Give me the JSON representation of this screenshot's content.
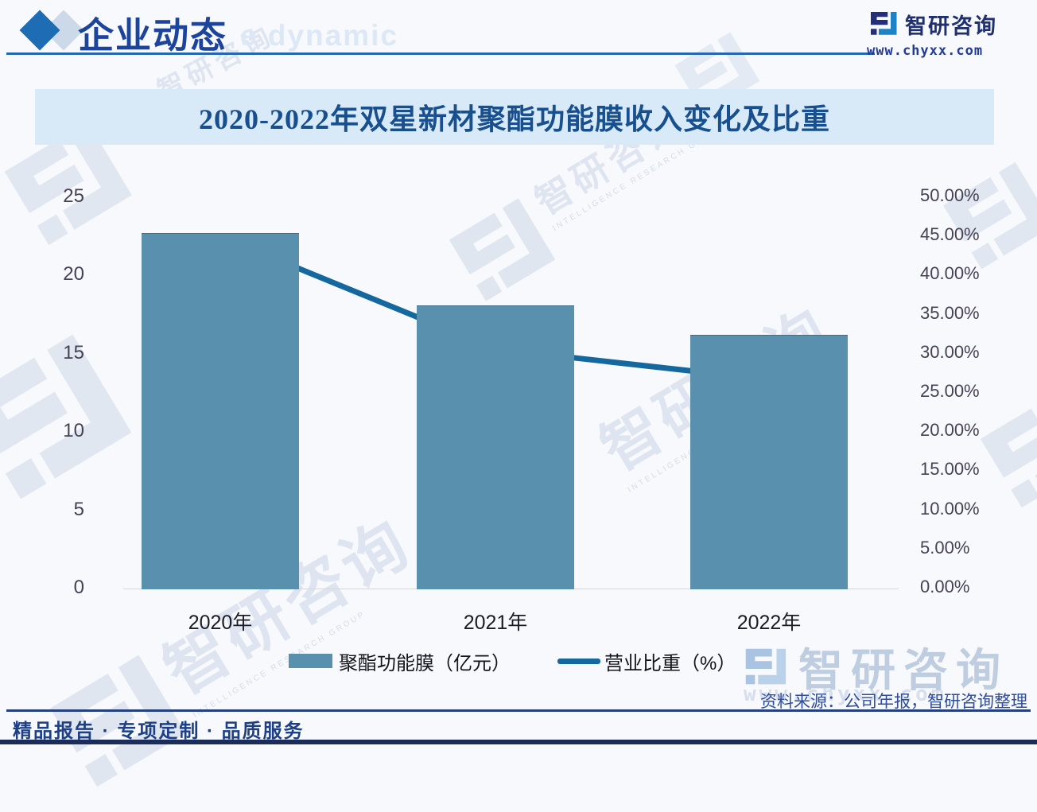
{
  "header": {
    "title": "企业动态",
    "title_watermark": "e dynamic"
  },
  "brand": {
    "name": "智研咨询",
    "url": "www.chyxx.com"
  },
  "chart_data": {
    "type": "bar",
    "title": "2020-2022年双星新材聚酯功能膜收入变化及比重",
    "categories": [
      "2020年",
      "2021年",
      "2022年"
    ],
    "series": [
      {
        "name": "聚酯功能膜（亿元）",
        "type": "bar",
        "axis": "left",
        "values": [
          22.7,
          18.1,
          16.2
        ]
      },
      {
        "name": "营业比重（%）",
        "type": "line",
        "axis": "right",
        "values": [
          45.0,
          30.6,
          26.7
        ]
      }
    ],
    "left_axis": {
      "min": 0,
      "max": 25,
      "ticks": [
        "25",
        "20",
        "15",
        "10",
        "5",
        "0"
      ]
    },
    "right_axis": {
      "min": 0,
      "max": 50,
      "ticks": [
        "50.00%",
        "45.00%",
        "40.00%",
        "35.00%",
        "30.00%",
        "25.00%",
        "20.00%",
        "15.00%",
        "10.00%",
        "5.00%",
        "0.00%"
      ]
    },
    "grid": false,
    "legend_position": "bottom"
  },
  "legend": {
    "bar_label": "聚酯功能膜（亿元）",
    "line_label": "营业比重（%）"
  },
  "watermark": {
    "logo_text": "智研咨询",
    "caption": "INTELLIGENCE RESEARCH GROUP",
    "url_text": "www.chyxx.com"
  },
  "source_note": "资料来源：公司年报，智研咨询整理",
  "footer_tagline": "精品报告 · 专项定制 · 品质服务",
  "colors": {
    "bar": "#5890ad",
    "line": "#15689e",
    "accent_navy": "#1d449b",
    "banner_bg": "#d8e9f7",
    "banner_text": "#174f8f",
    "logo_navy": "#242f7a",
    "logo_blue": "#1d82c6"
  }
}
